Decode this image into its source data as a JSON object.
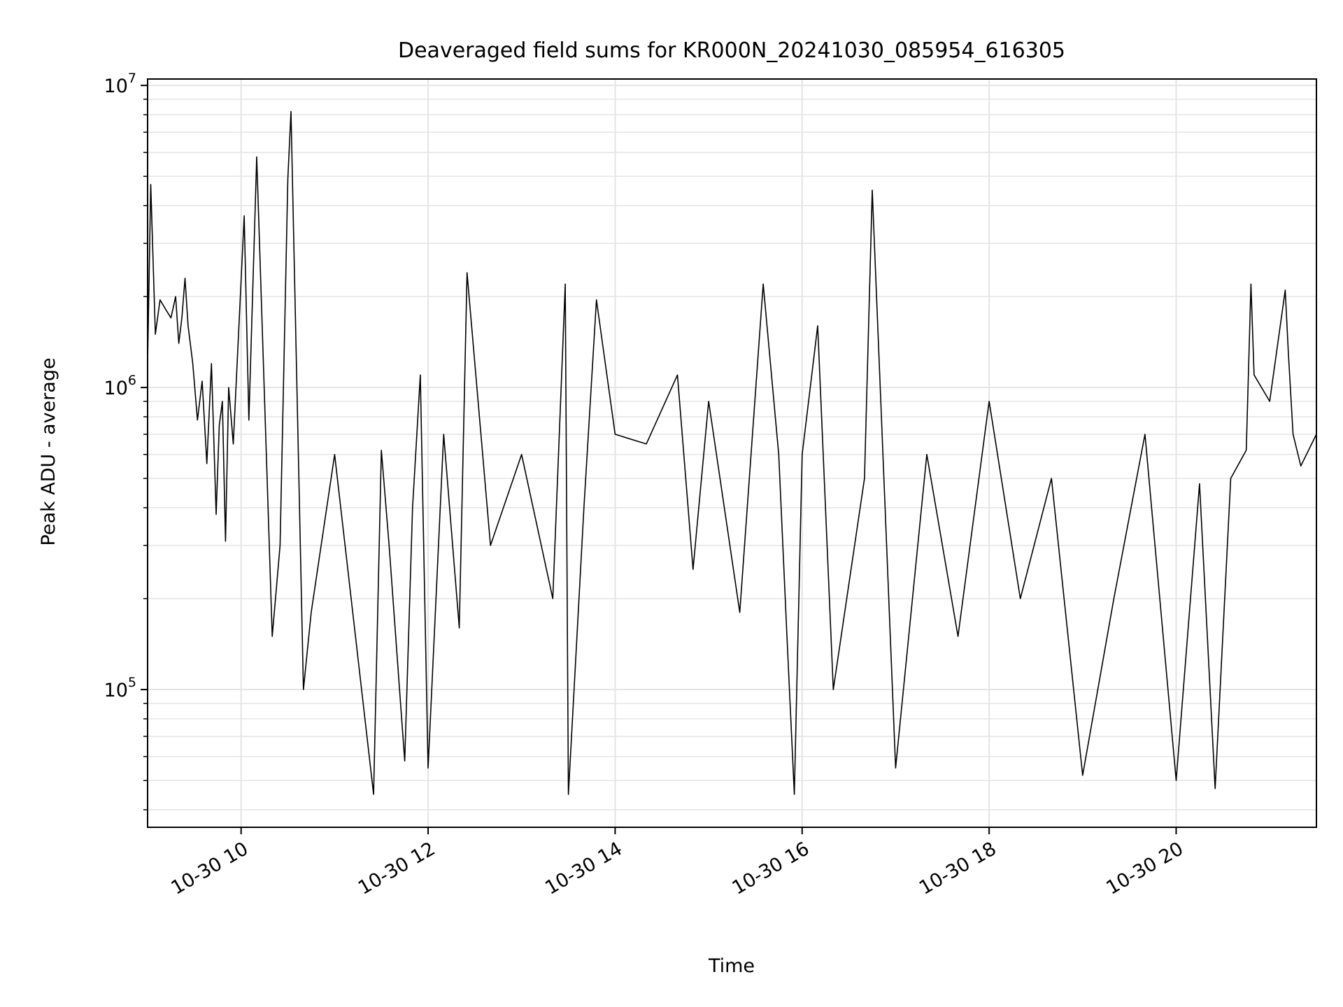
{
  "chart_data": {
    "type": "line",
    "title": "Deaveraged field sums for KR000N_20241030_085954_616305",
    "xlabel": "Time",
    "ylabel": "Peak ADU - average",
    "x_scale": "time",
    "y_scale": "log",
    "xlim": [
      "2024-10-30T09:00",
      "2024-10-30T21:30"
    ],
    "ylim": [
      35000,
      10500000
    ],
    "x_ticks": [
      {
        "value": "2024-10-30T10:00",
        "label": "10-30 10"
      },
      {
        "value": "2024-10-30T12:00",
        "label": "10-30 12"
      },
      {
        "value": "2024-10-30T14:00",
        "label": "10-30 14"
      },
      {
        "value": "2024-10-30T16:00",
        "label": "10-30 16"
      },
      {
        "value": "2024-10-30T18:00",
        "label": "10-30 18"
      },
      {
        "value": "2024-10-30T20:00",
        "label": "10-30 20"
      }
    ],
    "y_ticks": [
      {
        "value": 100000,
        "base": "10",
        "exp": "5"
      },
      {
        "value": 1000000,
        "base": "10",
        "exp": "6"
      },
      {
        "value": 10000000,
        "base": "10",
        "exp": "7"
      }
    ],
    "grid": true,
    "legend": "none",
    "line_color": "#000000",
    "series": [
      {
        "x": [
          "09:00",
          "09:02",
          "09:05",
          "09:08",
          "09:12",
          "09:15",
          "09:18",
          "09:20",
          "09:22",
          "09:24",
          "09:26",
          "09:29",
          "09:32",
          "09:35",
          "09:38",
          "09:41",
          "09:44",
          "09:46",
          "09:48",
          "09:50",
          "09:52",
          "09:55",
          "10:02",
          "10:05",
          "10:10",
          "10:20",
          "10:25",
          "10:30",
          "10:32",
          "10:40",
          "10:45",
          "11:00",
          "11:25",
          "11:30",
          "11:35",
          "11:45",
          "11:50",
          "11:55",
          "12:00",
          "12:10",
          "12:20",
          "12:25",
          "12:40",
          "13:00",
          "13:20",
          "13:28",
          "13:30",
          "13:40",
          "13:48",
          "14:00",
          "14:20",
          "14:40",
          "14:50",
          "15:00",
          "15:20",
          "15:35",
          "15:45",
          "15:50",
          "15:55",
          "16:00",
          "16:10",
          "16:20",
          "16:40",
          "16:45",
          "17:00",
          "17:20",
          "17:40",
          "18:00",
          "18:20",
          "18:40",
          "19:00",
          "19:20",
          "19:40",
          "20:00",
          "20:15",
          "20:25",
          "20:35",
          "20:45",
          "20:48",
          "20:50",
          "21:00",
          "21:10",
          "21:12",
          "21:15",
          "21:20",
          "21:30"
        ],
        "y": [
          1200000,
          4700000,
          1500000,
          1950000,
          1800000,
          1700000,
          2000000,
          1400000,
          1700000,
          2300000,
          1600000,
          1200000,
          780000,
          1050000,
          560000,
          1200000,
          380000,
          750000,
          900000,
          310000,
          1000000,
          650000,
          3700000,
          780000,
          5800000,
          150000,
          300000,
          4900000,
          8200000,
          100000,
          180000,
          600000,
          45000,
          620000,
          300000,
          58000,
          400000,
          1100000,
          55000,
          700000,
          160000,
          2400000,
          300000,
          600000,
          200000,
          2200000,
          45000,
          400000,
          1950000,
          700000,
          650000,
          1100000,
          250000,
          900000,
          180000,
          2200000,
          600000,
          160000,
          45000,
          600000,
          1600000,
          100000,
          500000,
          4500000,
          55000,
          600000,
          150000,
          900000,
          200000,
          500000,
          52000,
          200000,
          700000,
          50000,
          480000,
          47000,
          500000,
          620000,
          2200000,
          1100000,
          900000,
          2100000,
          1300000,
          700000,
          550000,
          700000
        ]
      }
    ]
  }
}
